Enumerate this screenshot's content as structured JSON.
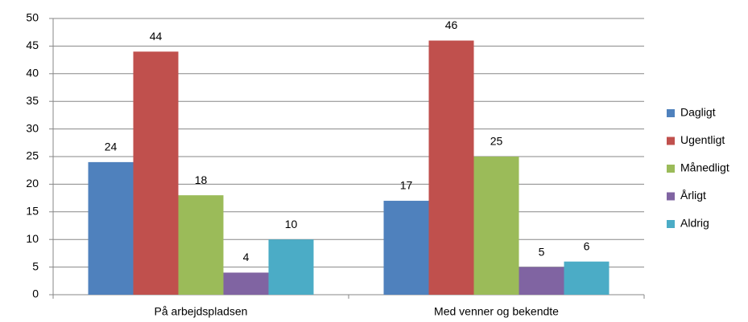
{
  "chart_data": {
    "type": "bar",
    "categories": [
      "På arbejdspladsen",
      "Med venner og bekendte"
    ],
    "series": [
      {
        "name": "Dagligt",
        "color": "#4f81bd",
        "values": [
          24,
          17
        ]
      },
      {
        "name": "Ugentligt",
        "color": "#c0504d",
        "values": [
          44,
          46
        ]
      },
      {
        "name": "Månedligt",
        "color": "#9bbb59",
        "values": [
          18,
          25
        ]
      },
      {
        "name": "Årligt",
        "color": "#8064a2",
        "values": [
          4,
          5
        ]
      },
      {
        "name": "Aldrig",
        "color": "#4bacc6",
        "values": [
          10,
          6
        ]
      }
    ],
    "ylim": [
      0,
      50
    ],
    "yticks": [
      0,
      5,
      10,
      15,
      20,
      25,
      30,
      35,
      40,
      45,
      50
    ],
    "grid": true,
    "legend": "right"
  }
}
